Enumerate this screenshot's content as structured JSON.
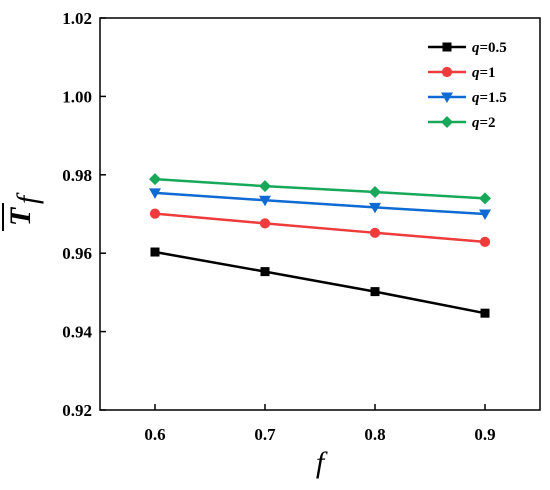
{
  "chart_data": {
    "type": "line",
    "title": "",
    "xlabel": "f",
    "ylabel_main": "T",
    "ylabel_sub": "f",
    "x": [
      0.6,
      0.7,
      0.8,
      0.9
    ],
    "xlim": [
      0.55,
      0.95
    ],
    "ylim": [
      0.92,
      1.02
    ],
    "xticks": [
      "0.6",
      "0.7",
      "0.8",
      "0.9"
    ],
    "yticks": [
      "0.92",
      "0.94",
      "0.96",
      "0.98",
      "1.00",
      "1.02"
    ],
    "grid": false,
    "legend_position": "top-right",
    "series": [
      {
        "name": "q=0.5",
        "name_var": "q",
        "name_val": "=0.5",
        "color": "#000000",
        "marker": "square",
        "values": [
          0.9603,
          0.9553,
          0.9502,
          0.9447
        ]
      },
      {
        "name": "q=1",
        "name_var": "q",
        "name_val": "=1",
        "color": "#ee3b3b",
        "marker": "circle",
        "values": [
          0.9701,
          0.9676,
          0.9652,
          0.9629
        ]
      },
      {
        "name": "q=1.5",
        "name_var": "q",
        "name_val": "=1.5",
        "color": "#0f6ad4",
        "marker": "triangle-down",
        "values": [
          0.9754,
          0.9735,
          0.9717,
          0.97
        ]
      },
      {
        "name": "q=2",
        "name_var": "q",
        "name_val": "=2",
        "color": "#18a85a",
        "marker": "diamond",
        "values": [
          0.9789,
          0.9771,
          0.9756,
          0.974
        ]
      }
    ]
  }
}
